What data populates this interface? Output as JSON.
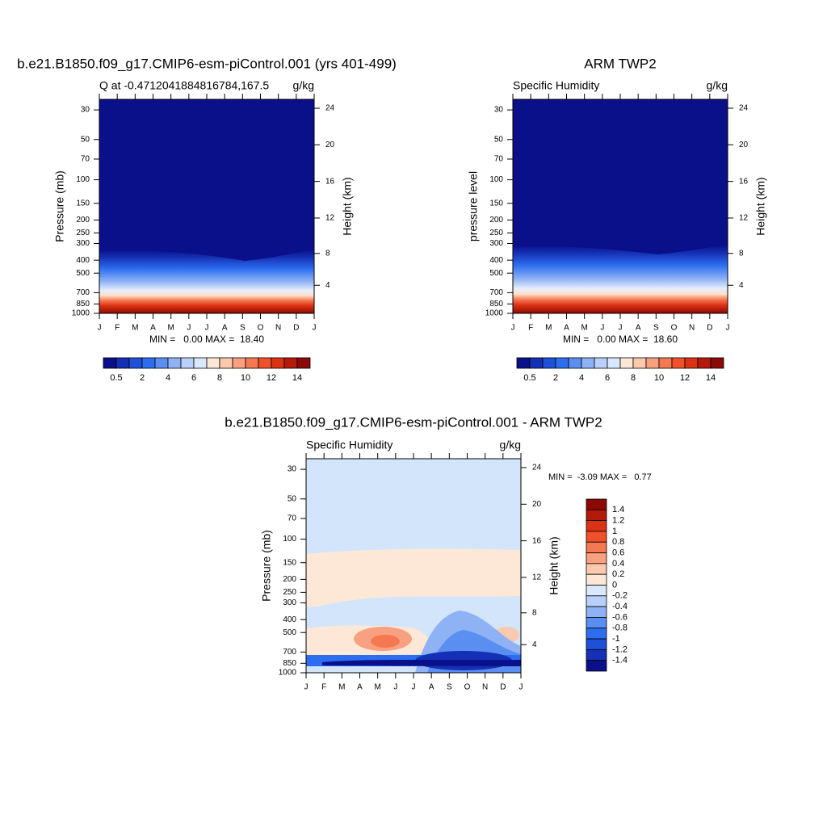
{
  "chart_data": [
    {
      "type": "contour",
      "title": "b.e21.B1850.f09_g17.CMIP6-esm-piControl.001 (yrs 401-499)",
      "subtitle_left": "Q at -0.4712041884816784,167.5",
      "subtitle_right": "g/kg",
      "ylabel": "Pressure (mb)",
      "y2label": "Height (km)",
      "categories": [
        "J",
        "F",
        "M",
        "A",
        "M",
        "J",
        "J",
        "A",
        "S",
        "O",
        "N",
        "D",
        "J"
      ],
      "ylim": [
        1000,
        25
      ],
      "log_y": true,
      "yticks": [
        30,
        50,
        70,
        100,
        150,
        200,
        250,
        300,
        400,
        500,
        700,
        850,
        1000
      ],
      "y2ticks": [
        4,
        8,
        12,
        16,
        20,
        24
      ],
      "min_max": "MIN =   0.00 MAX =  18.40",
      "colorbar": {
        "orientation": "horizontal",
        "labels": [
          0.5,
          2,
          4,
          6,
          8,
          10,
          12,
          14
        ],
        "colors": [
          "#0a0f8a",
          "#1430b4",
          "#1e50d8",
          "#2d6ef0",
          "#5a8ef0",
          "#8fb2f5",
          "#b9d0fa",
          "#d9e8fc",
          "#fde8d8",
          "#fbc9ad",
          "#f8a07f",
          "#f47851",
          "#f0512a",
          "#dc3214",
          "#b41a0a",
          "#8c0a05"
        ]
      }
    },
    {
      "type": "contour",
      "title": "ARM TWP2",
      "subtitle_left": "Specific Humidity",
      "subtitle_right": "g/kg",
      "ylabel": "pressure level",
      "y2label": "Height (km)",
      "categories": [
        "J",
        "F",
        "M",
        "A",
        "M",
        "J",
        "J",
        "A",
        "S",
        "O",
        "N",
        "D",
        "J"
      ],
      "ylim": [
        1000,
        25
      ],
      "log_y": true,
      "yticks": [
        30,
        50,
        70,
        100,
        150,
        200,
        250,
        300,
        400,
        500,
        700,
        850,
        1000
      ],
      "y2ticks": [
        4,
        8,
        12,
        16,
        20,
        24
      ],
      "min_max": "MIN =   0.00 MAX =  18.60",
      "colorbar": {
        "orientation": "horizontal",
        "labels": [
          0.5,
          2,
          4,
          6,
          8,
          10,
          12,
          14
        ],
        "colors": [
          "#0a0f8a",
          "#1430b4",
          "#1e50d8",
          "#2d6ef0",
          "#5a8ef0",
          "#8fb2f5",
          "#b9d0fa",
          "#d9e8fc",
          "#fde8d8",
          "#fbc9ad",
          "#f8a07f",
          "#f47851",
          "#f0512a",
          "#dc3214",
          "#b41a0a",
          "#8c0a05"
        ]
      }
    },
    {
      "type": "contour",
      "title": "b.e21.B1850.f09_g17.CMIP6-esm-piControl.001 - ARM TWP2",
      "subtitle_left": "Specific Humidity",
      "subtitle_right": "g/kg",
      "ylabel": "Pressure (mb)",
      "y2label": "Height (km)",
      "categories": [
        "J",
        "F",
        "M",
        "A",
        "M",
        "J",
        "J",
        "A",
        "S",
        "O",
        "N",
        "D",
        "J"
      ],
      "ylim": [
        1000,
        25
      ],
      "log_y": true,
      "yticks": [
        30,
        50,
        70,
        100,
        150,
        200,
        250,
        300,
        400,
        500,
        700,
        850,
        1000
      ],
      "y2ticks": [
        4,
        8,
        12,
        16,
        20,
        24
      ],
      "min_max": "MIN =  -3.09 MAX =   0.77",
      "colorbar": {
        "orientation": "vertical",
        "labels": [
          1.4,
          1.2,
          1,
          0.8,
          0.6,
          0.4,
          0.2,
          0,
          -0.2,
          -0.4,
          -0.6,
          -0.8,
          -1,
          -1.2,
          -1.4
        ],
        "colors": [
          "#8c0a05",
          "#b41a0a",
          "#dc3214",
          "#f0512a",
          "#f47851",
          "#f8a07f",
          "#fbc9ad",
          "#fde8d8",
          "#d9e8fc",
          "#b9d0fa",
          "#8fb2f5",
          "#5a8ef0",
          "#2d6ef0",
          "#1e50d8",
          "#1430b4",
          "#0a0f8a"
        ]
      }
    }
  ]
}
